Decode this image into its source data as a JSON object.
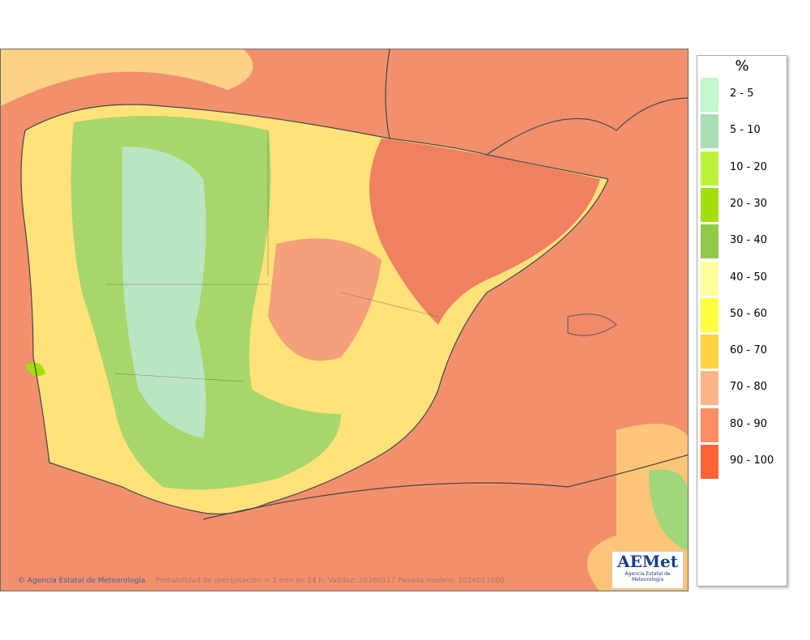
{
  "map": {
    "legend": {
      "title": "%",
      "items": [
        {
          "label": "2 - 5",
          "color": "#c4f7cc"
        },
        {
          "label": "5 - 10",
          "color": "#a9ddb4"
        },
        {
          "label": "10 - 20",
          "color": "#bdf23a"
        },
        {
          "label": "20 - 30",
          "color": "#a3df0a"
        },
        {
          "label": "30 - 40",
          "color": "#93c94a"
        },
        {
          "label": "40 - 50",
          "color": "#ffff9c"
        },
        {
          "label": "50 - 60",
          "color": "#ffff40"
        },
        {
          "label": "60 - 70",
          "color": "#ffd040"
        },
        {
          "label": "70 - 80",
          "color": "#ffb488"
        },
        {
          "label": "80 - 90",
          "color": "#ff8c62"
        },
        {
          "label": "90 - 100",
          "color": "#ff6434"
        }
      ]
    },
    "footer": {
      "agency": "© Agencia Estatal de Meteorología",
      "caption": "Probabilidad de precipitación > 2 mm en 24 h. Validez: 20260117 Pasada modelo: 2026011600"
    },
    "logo": {
      "name": "AEMet",
      "subtitle": "Agencia Estatal de Meteorología"
    }
  }
}
